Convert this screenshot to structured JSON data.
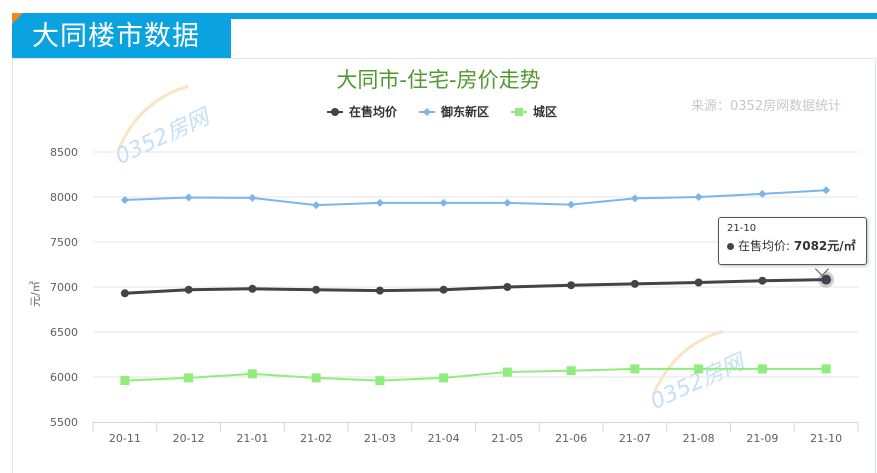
{
  "header": {
    "title": "大同楼市数据"
  },
  "chart": {
    "title": "大同市-住宅-房价走势",
    "source": "来源：0352房网数据统计",
    "ylabel": "元/㎡",
    "watermark": "0352房网"
  },
  "legend": [
    {
      "label": "在售均价",
      "color": "#434348",
      "marker": "circle"
    },
    {
      "label": "御东新区",
      "color": "#7cb5ec",
      "marker": "diamond"
    },
    {
      "label": "城区",
      "color": "#90ed7d",
      "marker": "square"
    }
  ],
  "tooltip": {
    "date": "21-10",
    "series": "在售均价:",
    "value": "7082元/㎡"
  },
  "chart_data": {
    "type": "line",
    "title": "大同市-住宅-房价走势",
    "xlabel": "",
    "ylabel": "元/㎡",
    "ylim": [
      5500,
      8500
    ],
    "yticks": [
      5500,
      6000,
      6500,
      7000,
      7500,
      8000,
      8500
    ],
    "grid": true,
    "legend_position": "top",
    "categories": [
      "20-11",
      "20-12",
      "21-01",
      "21-02",
      "21-03",
      "21-04",
      "21-05",
      "21-06",
      "21-07",
      "21-08",
      "21-09",
      "21-10"
    ],
    "series": [
      {
        "name": "在售均价",
        "color": "#434348",
        "values": [
          6930,
          6970,
          6980,
          6970,
          6960,
          6970,
          7000,
          7020,
          7035,
          7050,
          7070,
          7082
        ]
      },
      {
        "name": "御东新区",
        "color": "#7cb5ec",
        "values": [
          7967,
          7995,
          7990,
          7910,
          7935,
          7935,
          7935,
          7915,
          7985,
          8000,
          8035,
          8075
        ]
      },
      {
        "name": "城区",
        "color": "#90ed7d",
        "values": [
          5960,
          5990,
          6035,
          5990,
          5960,
          5990,
          6055,
          6070,
          6090,
          6090,
          6090,
          6090
        ]
      }
    ]
  }
}
